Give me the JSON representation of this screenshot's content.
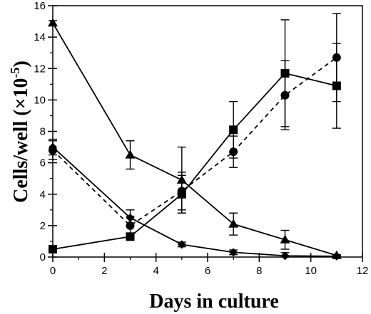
{
  "chart_data": {
    "type": "line",
    "title": "",
    "xlabel": "Days in culture",
    "ylabel_main": "Cells/well (×10",
    "ylabel_exp": "-5",
    "ylabel_close": ")",
    "xlim": [
      0,
      12
    ],
    "ylim": [
      0,
      16
    ],
    "xticks": [
      0,
      2,
      4,
      6,
      8,
      10,
      12
    ],
    "yticks": [
      0,
      2,
      4,
      6,
      8,
      10,
      12,
      14,
      16
    ],
    "grid": false,
    "legend": "none",
    "series": [
      {
        "marker": "triangle",
        "line": "solid",
        "x": [
          0,
          3,
          5,
          7,
          9,
          11
        ],
        "y": [
          14.9,
          6.5,
          4.9,
          2.1,
          1.1,
          0.1
        ],
        "err": [
          0.15,
          0.9,
          2.1,
          0.7,
          0.6,
          0.05
        ]
      },
      {
        "marker": "square",
        "line": "solid",
        "x": [
          0,
          3,
          5,
          7,
          9,
          11
        ],
        "y": [
          0.5,
          1.3,
          4.0,
          8.1,
          11.7,
          10.9
        ],
        "err": [
          0.05,
          0.2,
          1.2,
          1.8,
          3.4,
          2.7
        ]
      },
      {
        "marker": "circle",
        "line": "dashed",
        "x": [
          0,
          3,
          5,
          7,
          9,
          11
        ],
        "y": [
          6.8,
          2.0,
          4.2,
          6.7,
          10.3,
          12.7
        ],
        "err": [
          0.6,
          0.6,
          1.2,
          1.0,
          2.2,
          2.8
        ]
      },
      {
        "marker": "diamond",
        "line": "solid",
        "x": [
          0,
          3,
          5,
          7,
          9,
          11
        ],
        "y": [
          7.0,
          2.5,
          0.8,
          0.3,
          0.08,
          0.05
        ],
        "err": [
          0.5,
          0.5,
          0.15,
          0.15,
          0.2,
          0.05
        ]
      }
    ]
  },
  "colors": {
    "ink": "#000000",
    "background": "#ffffff"
  }
}
